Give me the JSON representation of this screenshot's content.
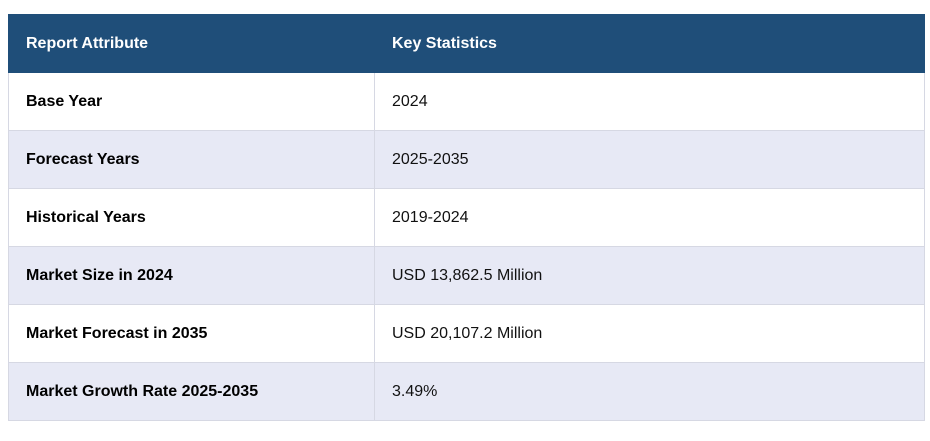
{
  "table": {
    "headers": [
      "Report Attribute",
      "Key Statistics"
    ],
    "rows": [
      {
        "attribute": "Base Year",
        "value": "2024"
      },
      {
        "attribute": "Forecast Years",
        "value": "2025-2035"
      },
      {
        "attribute": "Historical Years",
        "value": "2019-2024"
      },
      {
        "attribute": "Market Size in 2024",
        "value": "USD 13,862.5 Million"
      },
      {
        "attribute": "Market Forecast in 2035",
        "value": "USD 20,107.2 Million"
      },
      {
        "attribute": "Market Growth Rate 2025-2035",
        "value": "3.49%"
      }
    ]
  },
  "colors": {
    "header_bg": "#1f4e79",
    "header_text": "#ffffff",
    "alt_row_bg": "#e7e9f5",
    "row_bg": "#ffffff",
    "border": "#d6d8e3"
  }
}
